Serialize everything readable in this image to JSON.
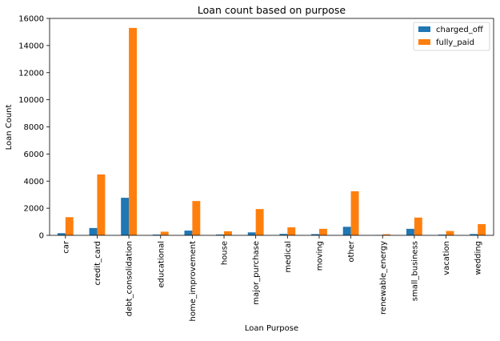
{
  "chart_data": {
    "type": "bar",
    "title": "Loan count based on purpose",
    "xlabel": "Loan Purpose",
    "ylabel": "Loan Count",
    "ylim": [
      0,
      16000
    ],
    "yticks": [
      0,
      2000,
      4000,
      6000,
      8000,
      10000,
      12000,
      14000,
      16000
    ],
    "grid": false,
    "legend_position": "top-right",
    "categories": [
      "car",
      "credit_card",
      "debt_consolidation",
      "educational",
      "home_improvement",
      "house",
      "major_purchase",
      "medical",
      "moving",
      "other",
      "renewable_energy",
      "small_business",
      "vacation",
      "wedding"
    ],
    "series": [
      {
        "name": "charged_off",
        "color": "#1f77b4",
        "values": [
          160,
          540,
          2770,
          55,
          350,
          60,
          220,
          105,
          90,
          630,
          20,
          480,
          55,
          95
        ]
      },
      {
        "name": "fully_paid",
        "color": "#ff7f0e",
        "values": [
          1340,
          4490,
          15300,
          270,
          2530,
          300,
          1940,
          590,
          480,
          3250,
          80,
          1310,
          320,
          830
        ]
      }
    ]
  }
}
